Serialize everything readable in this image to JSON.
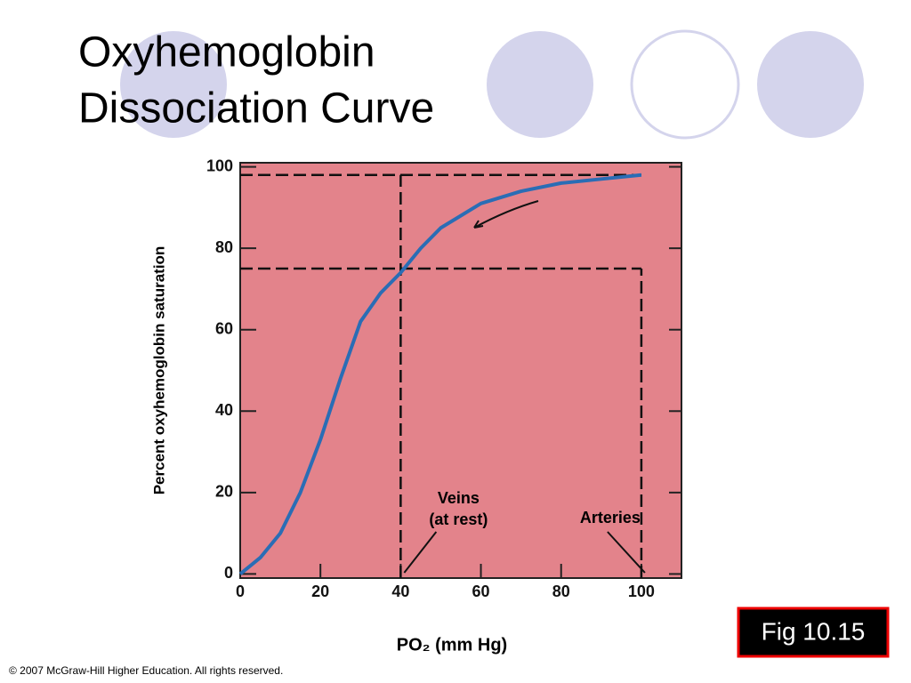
{
  "slide": {
    "title": [
      "Oxyhemoglobin",
      "Dissociation Curve"
    ],
    "figure_label": "Fig 10.15",
    "copyright": "© 2007 McGraw-Hill Higher Education. All rights reserved."
  },
  "chart_data": {
    "type": "line",
    "x_label": "PO₂ (mm Hg)",
    "y_label": "Percent oxyhemoglobin saturation",
    "x": [
      0,
      5,
      10,
      15,
      20,
      25,
      30,
      35,
      40,
      45,
      50,
      60,
      70,
      80,
      90,
      100
    ],
    "series": [
      {
        "name": "Oxyhemoglobin saturation",
        "color": "#2a6db5",
        "values": [
          0,
          4,
          10,
          20,
          33,
          48,
          62,
          69,
          74,
          80,
          85,
          91,
          94,
          96,
          97,
          98
        ]
      }
    ],
    "xlim": [
      0,
      110
    ],
    "ylim": [
      -1,
      101
    ],
    "xticks": [
      0,
      20,
      40,
      60,
      80,
      100
    ],
    "yticks": [
      0,
      20,
      40,
      60,
      80,
      100
    ],
    "hlines": [
      98,
      75
    ],
    "vlines": [
      40,
      100
    ],
    "annotations": [
      {
        "text": [
          "Veins",
          "(at rest)"
        ],
        "x": 40
      },
      {
        "text": [
          "Arteries"
        ],
        "x": 100
      }
    ],
    "background": "#e3838b"
  }
}
